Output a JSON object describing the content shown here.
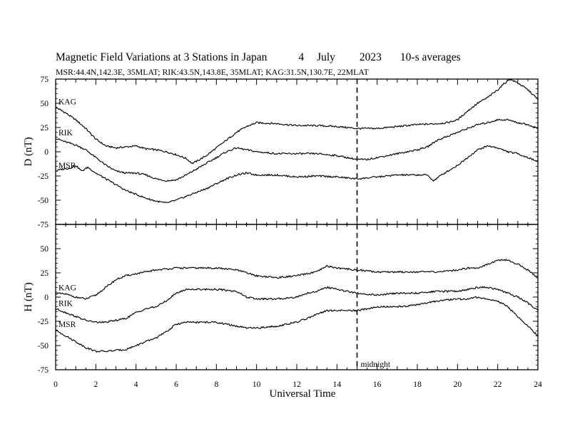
{
  "title": {
    "main_text": "Magnetic Field Variations at 3 Stations in Japan",
    "day": "4",
    "month": "July",
    "year": "2023",
    "averaging": "10-s averages",
    "stations_line": "MSR:44.4N,142.3E, 35MLAT;  RIK:43.5N,143.8E, 35MLAT;  KAG:31.5N,130.7E, 22MLAT"
  },
  "xaxis": {
    "label": "Universal Time"
  },
  "annotation": {
    "midnight_label": "midnight"
  },
  "chart_data": [
    {
      "type": "line",
      "panel": "top",
      "ylabel": "D (nT)",
      "ylim": [
        -75,
        75
      ],
      "yticks": [
        75,
        50,
        25,
        0,
        -25,
        -50,
        -75
      ],
      "xlim": [
        0,
        24
      ],
      "xticks": [
        0,
        2,
        4,
        6,
        8,
        10,
        12,
        14,
        16,
        18,
        20,
        22,
        24
      ],
      "vline": {
        "x": 15,
        "style": "dashed"
      },
      "series": [
        {
          "name": "KAG",
          "x": [
            0,
            0.5,
            1,
            1.5,
            2,
            2.5,
            3,
            3.5,
            4,
            4.5,
            5,
            5.5,
            6,
            6.5,
            6.8,
            7,
            7.5,
            8,
            8.5,
            9,
            9.5,
            10,
            11,
            12,
            13,
            14,
            15,
            16,
            17,
            18,
            19,
            19.5,
            20,
            20.5,
            21,
            21.5,
            22,
            22.3,
            22.6,
            23,
            23.5,
            24
          ],
          "values": [
            46,
            40,
            33,
            24,
            13,
            6,
            4,
            5,
            6,
            3,
            2,
            0,
            -3,
            -7,
            -12,
            -10,
            -4,
            4,
            12,
            20,
            26,
            30,
            29,
            27,
            27,
            26,
            24,
            24,
            26,
            28,
            29,
            30,
            33,
            42,
            50,
            56,
            64,
            70,
            75,
            71,
            64,
            54
          ]
        },
        {
          "name": "RIK",
          "x": [
            0,
            0.5,
            1,
            1.5,
            2,
            2.5,
            3,
            3.5,
            4,
            4.5,
            5,
            5.5,
            6,
            6.5,
            7,
            7.5,
            8,
            8.5,
            9,
            9.5,
            10,
            11,
            12,
            13,
            14,
            15,
            15.5,
            16,
            17,
            18,
            18.5,
            19,
            19.5,
            20,
            20.5,
            21,
            21.5,
            22,
            22.5,
            23,
            23.5,
            24
          ],
          "values": [
            14,
            10,
            7,
            2,
            -6,
            -14,
            -20,
            -22,
            -22,
            -24,
            -28,
            -30,
            -29,
            -24,
            -18,
            -12,
            -6,
            0,
            4,
            2,
            0,
            -2,
            -2,
            -2,
            -4,
            -8,
            -8,
            -6,
            -2,
            2,
            5,
            12,
            16,
            20,
            24,
            28,
            30,
            33,
            33,
            30,
            28,
            24
          ]
        },
        {
          "name": "MSR",
          "x": [
            0,
            0.3,
            0.7,
            1,
            1.3,
            1.6,
            2,
            2.5,
            3,
            3.5,
            4,
            4.5,
            5,
            5.5,
            6,
            6.5,
            7,
            7.5,
            8,
            8.5,
            9,
            9.5,
            10,
            11,
            12,
            13,
            14,
            15,
            16,
            17,
            18,
            18.5,
            18.8,
            19.2,
            20,
            20.5,
            21,
            21.5,
            22,
            22.5,
            23,
            23.5,
            24
          ],
          "values": [
            -20,
            -18,
            -17,
            -14,
            -20,
            -16,
            -22,
            -28,
            -34,
            -40,
            -44,
            -48,
            -51,
            -53,
            -50,
            -46,
            -42,
            -38,
            -33,
            -28,
            -24,
            -22,
            -24,
            -24,
            -26,
            -25,
            -26,
            -28,
            -26,
            -24,
            -24,
            -24,
            -30,
            -24,
            -14,
            -6,
            2,
            6,
            4,
            0,
            -2,
            -6,
            -10
          ]
        }
      ]
    },
    {
      "type": "line",
      "panel": "bottom",
      "ylabel": "H (nT)",
      "ylim": [
        -75,
        75
      ],
      "yticks": [
        50,
        25,
        0,
        -25,
        -50,
        -75
      ],
      "xlim": [
        0,
        24
      ],
      "xticks": [
        0,
        2,
        4,
        6,
        8,
        10,
        12,
        14,
        16,
        18,
        20,
        22,
        24
      ],
      "vline": {
        "x": 15,
        "style": "dashed"
      },
      "series": [
        {
          "name": "KAG",
          "x": [
            0,
            0.5,
            1,
            1.5,
            2,
            2.5,
            3,
            3.5,
            4,
            4.5,
            5,
            6,
            7,
            8,
            9,
            10,
            11,
            12,
            12.5,
            13,
            13.5,
            14,
            15,
            16,
            17,
            18,
            19,
            19.5,
            20,
            20.5,
            21,
            21.5,
            22,
            22.5,
            23,
            23.5,
            24
          ],
          "values": [
            4,
            3,
            0,
            -2,
            2,
            10,
            18,
            22,
            24,
            26,
            28,
            30,
            30,
            30,
            28,
            22,
            20,
            22,
            24,
            26,
            32,
            30,
            28,
            26,
            26,
            26,
            26,
            27,
            28,
            30,
            30,
            34,
            38,
            38,
            34,
            28,
            20
          ]
        },
        {
          "name": "RIK",
          "x": [
            0,
            0.5,
            1,
            1.5,
            2,
            2.5,
            3,
            3.5,
            4,
            4.5,
            5,
            5.5,
            6,
            6.5,
            7,
            8,
            9,
            9.5,
            10,
            11,
            12,
            12.5,
            13,
            13.5,
            14,
            15,
            16,
            17,
            18,
            19,
            20,
            20.5,
            21,
            21.5,
            22,
            22.5,
            23,
            23.5,
            24
          ],
          "values": [
            -12,
            -16,
            -20,
            -24,
            -26,
            -26,
            -24,
            -22,
            -16,
            -12,
            -10,
            -4,
            4,
            8,
            8,
            8,
            6,
            0,
            -2,
            -2,
            0,
            4,
            6,
            10,
            8,
            4,
            2,
            4,
            4,
            6,
            6,
            8,
            10,
            10,
            8,
            4,
            0,
            -6,
            -14
          ]
        },
        {
          "name": "MSR",
          "x": [
            0,
            0.5,
            1,
            1.5,
            2,
            2.5,
            3,
            3.5,
            4,
            4.5,
            5,
            5.5,
            6,
            6.5,
            7,
            8,
            8.5,
            9,
            9.5,
            10,
            11,
            12,
            12.5,
            13,
            13.5,
            14,
            15,
            16,
            17,
            18,
            19,
            20,
            20.5,
            21,
            21.5,
            22,
            22.5,
            23,
            23.5,
            24
          ],
          "values": [
            -34,
            -40,
            -46,
            -52,
            -56,
            -56,
            -55,
            -54,
            -50,
            -46,
            -42,
            -36,
            -28,
            -26,
            -26,
            -26,
            -28,
            -30,
            -32,
            -32,
            -30,
            -26,
            -22,
            -18,
            -14,
            -14,
            -14,
            -10,
            -10,
            -8,
            -4,
            -2,
            -2,
            0,
            -2,
            -4,
            -10,
            -20,
            -30,
            -40
          ]
        }
      ]
    }
  ]
}
